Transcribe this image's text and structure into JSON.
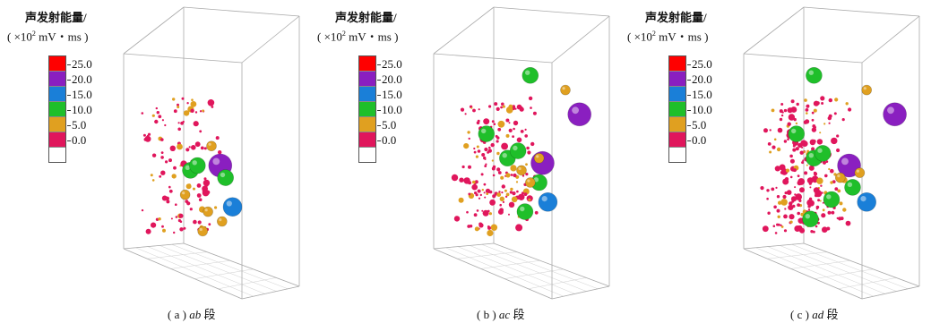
{
  "legend": {
    "title": "声发射能量/",
    "unit_prefix": "( ×10",
    "unit_exp": "2",
    "unit_suffix": " mV・ms )",
    "ticks": [
      "25.0",
      "20.0",
      "15.0",
      "10.0",
      "5.0",
      "0.0"
    ],
    "colors": [
      "#ff0000",
      "#8a1fc0",
      "#1a7fd8",
      "#1fbf2a",
      "#e0a020",
      "#e0165c",
      "#ffffff"
    ]
  },
  "panels": [
    {
      "id": "a",
      "caption_prefix": "( a ) ",
      "caption_seg": "ab",
      "caption_suffix": " 段"
    },
    {
      "id": "b",
      "caption_prefix": "( b ) ",
      "caption_seg": "ac",
      "caption_suffix": " 段"
    },
    {
      "id": "c",
      "caption_prefix": "( c ) ",
      "caption_seg": "ad",
      "caption_suffix": " 段"
    }
  ],
  "chart_data": [
    {
      "type": "scatter",
      "title": "( a ) ab 段",
      "points": [
        {
          "x": 0.55,
          "y": 0.43,
          "z": 0.42,
          "energy": 20.0
        },
        {
          "x": 0.62,
          "y": 0.6,
          "z": 0.3,
          "energy": 15.0
        },
        {
          "x": 0.38,
          "y": 0.45,
          "z": 0.4,
          "energy": 12.0
        },
        {
          "x": 0.42,
          "y": 0.43,
          "z": 0.42,
          "energy": 12.0
        },
        {
          "x": 0.58,
          "y": 0.48,
          "z": 0.35,
          "energy": 12.0
        },
        {
          "x": 0.5,
          "y": 0.35,
          "z": 0.55,
          "energy": 5.0
        },
        {
          "x": 0.35,
          "y": 0.55,
          "z": 0.3,
          "energy": 5.0
        },
        {
          "x": 0.48,
          "y": 0.62,
          "z": 0.3,
          "energy": 5.0
        },
        {
          "x": 0.56,
          "y": 0.66,
          "z": 0.28,
          "energy": 5.0
        },
        {
          "x": 0.45,
          "y": 0.7,
          "z": 0.25,
          "energy": 5.0
        }
      ]
    },
    {
      "type": "scatter",
      "title": "( b ) ac 段",
      "points": [
        {
          "x": 0.62,
          "y": 0.42,
          "z": 0.42,
          "energy": 20.0
        },
        {
          "x": 0.83,
          "y": 0.22,
          "z": 0.6,
          "energy": 20.0
        },
        {
          "x": 0.65,
          "y": 0.58,
          "z": 0.3,
          "energy": 15.0
        },
        {
          "x": 0.55,
          "y": 0.06,
          "z": 0.8,
          "energy": 12.0
        },
        {
          "x": 0.42,
          "y": 0.4,
          "z": 0.42,
          "energy": 12.0
        },
        {
          "x": 0.48,
          "y": 0.37,
          "z": 0.44,
          "energy": 12.0
        },
        {
          "x": 0.3,
          "y": 0.3,
          "z": 0.5,
          "energy": 12.0
        },
        {
          "x": 0.6,
          "y": 0.5,
          "z": 0.35,
          "energy": 12.0
        },
        {
          "x": 0.52,
          "y": 0.62,
          "z": 0.3,
          "energy": 12.0
        },
        {
          "x": 0.75,
          "y": 0.12,
          "z": 0.7,
          "energy": 5.0
        },
        {
          "x": 0.55,
          "y": 0.5,
          "z": 0.36,
          "energy": 5.0
        },
        {
          "x": 0.5,
          "y": 0.45,
          "z": 0.4,
          "energy": 5.0
        },
        {
          "x": 0.6,
          "y": 0.4,
          "z": 0.44,
          "energy": 5.0
        }
      ]
    },
    {
      "type": "scatter",
      "title": "( c ) ad 段",
      "points": [
        {
          "x": 0.6,
          "y": 0.43,
          "z": 0.42,
          "energy": 20.0
        },
        {
          "x": 0.86,
          "y": 0.22,
          "z": 0.6,
          "energy": 20.0
        },
        {
          "x": 0.7,
          "y": 0.58,
          "z": 0.3,
          "energy": 15.0
        },
        {
          "x": 0.4,
          "y": 0.06,
          "z": 0.8,
          "energy": 12.0
        },
        {
          "x": 0.4,
          "y": 0.4,
          "z": 0.42,
          "energy": 12.0
        },
        {
          "x": 0.45,
          "y": 0.38,
          "z": 0.44,
          "energy": 12.0
        },
        {
          "x": 0.3,
          "y": 0.3,
          "z": 0.5,
          "energy": 12.0
        },
        {
          "x": 0.62,
          "y": 0.52,
          "z": 0.35,
          "energy": 12.0
        },
        {
          "x": 0.5,
          "y": 0.57,
          "z": 0.32,
          "energy": 12.0
        },
        {
          "x": 0.38,
          "y": 0.65,
          "z": 0.3,
          "energy": 12.0
        },
        {
          "x": 0.7,
          "y": 0.12,
          "z": 0.7,
          "energy": 5.0
        },
        {
          "x": 0.55,
          "y": 0.48,
          "z": 0.38,
          "energy": 5.0
        },
        {
          "x": 0.66,
          "y": 0.46,
          "z": 0.4,
          "energy": 5.0
        }
      ]
    }
  ]
}
